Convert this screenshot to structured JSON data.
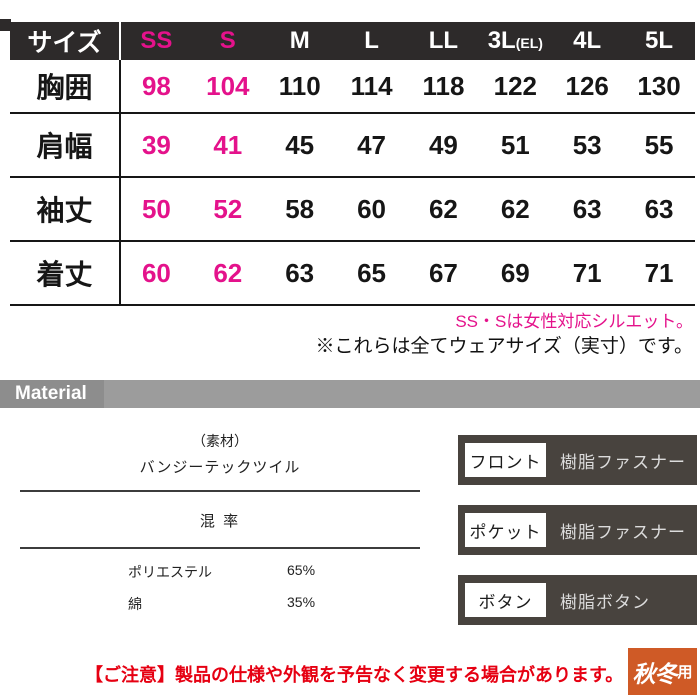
{
  "colors": {
    "header_dark": "#2d2a2a",
    "accent_pink": "#e4128b",
    "material_bar_gray": "#9c9c9c",
    "material_tag_gray": "#8d8d8d",
    "component_box_dark": "#48433e",
    "notice_red": "#e60012",
    "badge_orange": "#cf5a26"
  },
  "size_table": {
    "label_header": "サイズ",
    "columns": [
      {
        "label": "SS",
        "highlight": true
      },
      {
        "label": "S",
        "highlight": true
      },
      {
        "label": "M",
        "highlight": false
      },
      {
        "label": "L",
        "highlight": false
      },
      {
        "label": "LL",
        "highlight": false
      },
      {
        "label": "3L",
        "sub": "(EL)",
        "highlight": false
      },
      {
        "label": "4L",
        "highlight": false
      },
      {
        "label": "5L",
        "highlight": false
      }
    ],
    "rows": [
      {
        "label": "胸囲",
        "values": [
          98,
          104,
          110,
          114,
          118,
          122,
          126,
          130
        ]
      },
      {
        "label": "肩幅",
        "values": [
          39,
          41,
          45,
          47,
          49,
          51,
          53,
          55
        ]
      },
      {
        "label": "袖丈",
        "values": [
          50,
          52,
          58,
          60,
          62,
          62,
          63,
          63
        ]
      },
      {
        "label": "着丈",
        "values": [
          60,
          62,
          63,
          65,
          67,
          69,
          71,
          71
        ]
      }
    ]
  },
  "notes": {
    "pink": "SS・Sは女性対応シルエット。",
    "black": "※これらは全てウェアサイズ（実寸）です。"
  },
  "material": {
    "section_title": "Material",
    "label": "（素材）",
    "name": "バンジーテックツイル",
    "ratio_label": "混 率",
    "composition": [
      {
        "name": "ポリエステル",
        "percent": "65%"
      },
      {
        "name": "綿",
        "percent": "35%"
      }
    ]
  },
  "components": [
    {
      "label": "フロント",
      "value": "樹脂ファスナー"
    },
    {
      "label": "ポケット",
      "value": "樹脂ファスナー"
    },
    {
      "label": "ボタン",
      "value": "樹脂ボタン"
    }
  ],
  "footer": {
    "notice": "【ご注意】製品の仕様や外観を予告なく変更する場合があります。",
    "badge_main": "秋冬",
    "badge_sub": "用"
  }
}
